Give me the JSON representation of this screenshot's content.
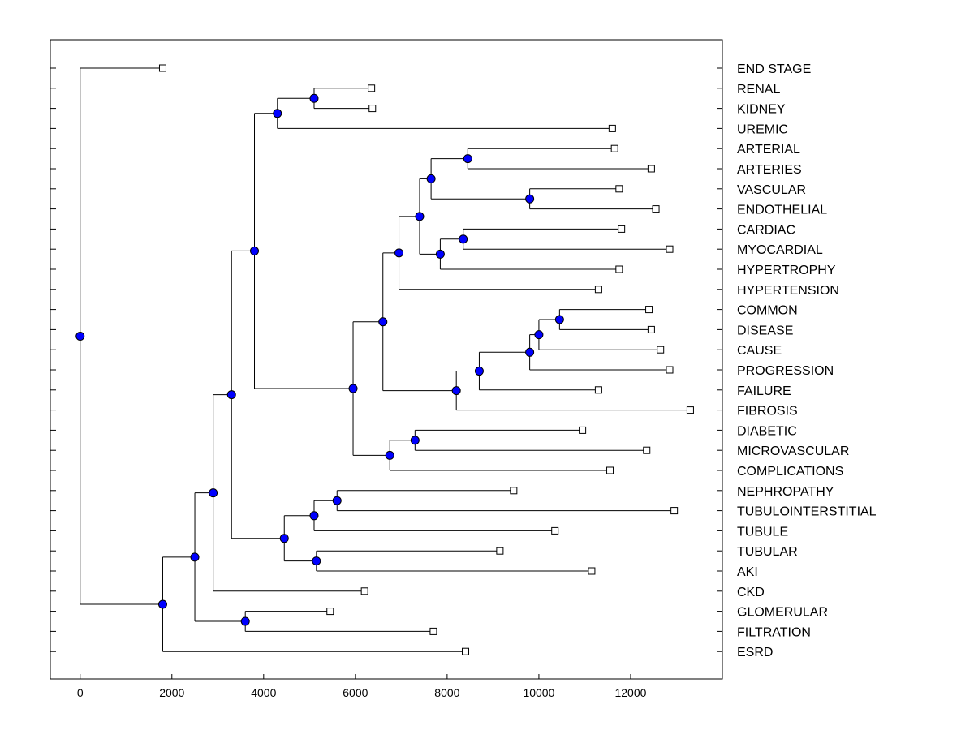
{
  "chart_data": {
    "type": "dendrogram",
    "title": "",
    "xlabel": "",
    "ylabel": "",
    "xlim": [
      -650,
      14000
    ],
    "x_ticks": [
      "0",
      "2000",
      "4000",
      "6000",
      "8000",
      "10000",
      "12000"
    ],
    "x_tick_values": [
      0,
      2000,
      4000,
      6000,
      8000,
      10000,
      12000
    ],
    "leaves": [
      {
        "label": "END STAGE",
        "x": 1800
      },
      {
        "label": "RENAL",
        "x": 6350
      },
      {
        "label": "KIDNEY",
        "x": 6370
      },
      {
        "label": "UREMIC",
        "x": 11600
      },
      {
        "label": "ARTERIAL",
        "x": 11650
      },
      {
        "label": "ARTERIES",
        "x": 12450
      },
      {
        "label": "VASCULAR",
        "x": 11750
      },
      {
        "label": "ENDOTHELIAL",
        "x": 12550
      },
      {
        "label": "CARDIAC",
        "x": 11800
      },
      {
        "label": "MYOCARDIAL",
        "x": 12850
      },
      {
        "label": "HYPERTROPHY",
        "x": 11750
      },
      {
        "label": "HYPERTENSION",
        "x": 11300
      },
      {
        "label": "COMMON",
        "x": 12400
      },
      {
        "label": "DISEASE",
        "x": 12450
      },
      {
        "label": "CAUSE",
        "x": 12650
      },
      {
        "label": "PROGRESSION",
        "x": 12850
      },
      {
        "label": "FAILURE",
        "x": 11300
      },
      {
        "label": "FIBROSIS",
        "x": 13300
      },
      {
        "label": "DIABETIC",
        "x": 10950
      },
      {
        "label": "MICROVASCULAR",
        "x": 12350
      },
      {
        "label": "COMPLICATIONS",
        "x": 11550
      },
      {
        "label": "NEPHROPATHY",
        "x": 9450
      },
      {
        "label": "TUBULOINTERSTITIAL",
        "x": 12950
      },
      {
        "label": "TUBULE",
        "x": 10350
      },
      {
        "label": "TUBULAR",
        "x": 9150
      },
      {
        "label": "AKI",
        "x": 11150
      },
      {
        "label": "CKD",
        "x": 6200
      },
      {
        "label": "GLOMERULAR",
        "x": 5450
      },
      {
        "label": "FILTRATION",
        "x": 7700
      },
      {
        "label": "ESRD",
        "x": 8400
      }
    ],
    "merges": [
      {
        "id": "N1",
        "x": 5100,
        "children": [
          "L1",
          "L2"
        ]
      },
      {
        "id": "N2",
        "x": 4300,
        "children": [
          "N1",
          "L3"
        ]
      },
      {
        "id": "N3",
        "x": 8450,
        "children": [
          "L4",
          "L5"
        ]
      },
      {
        "id": "N4",
        "x": 9800,
        "children": [
          "L6",
          "L7"
        ]
      },
      {
        "id": "N5",
        "x": 7650,
        "children": [
          "N3",
          "N4"
        ]
      },
      {
        "id": "N6",
        "x": 8350,
        "children": [
          "L8",
          "L9"
        ]
      },
      {
        "id": "N7",
        "x": 7850,
        "children": [
          "N6",
          "L10"
        ]
      },
      {
        "id": "N8",
        "x": 7400,
        "children": [
          "N5",
          "N7"
        ]
      },
      {
        "id": "N9",
        "x": 6950,
        "children": [
          "N8",
          "L11"
        ]
      },
      {
        "id": "N10",
        "x": 10450,
        "children": [
          "L12",
          "L13"
        ]
      },
      {
        "id": "N11",
        "x": 10000,
        "children": [
          "N10",
          "L14"
        ]
      },
      {
        "id": "N12",
        "x": 9800,
        "children": [
          "N11",
          "L15"
        ]
      },
      {
        "id": "N13",
        "x": 8700,
        "children": [
          "N12",
          "L16"
        ]
      },
      {
        "id": "N14",
        "x": 8200,
        "children": [
          "N13",
          "L17"
        ]
      },
      {
        "id": "N15",
        "x": 6600,
        "children": [
          "N9",
          "N14"
        ]
      },
      {
        "id": "N16",
        "x": 7300,
        "children": [
          "L18",
          "L19"
        ]
      },
      {
        "id": "N17",
        "x": 6750,
        "children": [
          "N16",
          "L20"
        ]
      },
      {
        "id": "N18",
        "x": 5950,
        "children": [
          "N15",
          "N17"
        ]
      },
      {
        "id": "N19",
        "x": 3800,
        "children": [
          "N2",
          "N18"
        ]
      },
      {
        "id": "N20",
        "x": 5600,
        "children": [
          "L21",
          "L22"
        ]
      },
      {
        "id": "N21",
        "x": 5100,
        "children": [
          "N20",
          "L23"
        ]
      },
      {
        "id": "N22",
        "x": 5150,
        "children": [
          "L24",
          "L25"
        ]
      },
      {
        "id": "N23",
        "x": 4450,
        "children": [
          "N21",
          "N22"
        ]
      },
      {
        "id": "N24",
        "x": 3300,
        "children": [
          "N19",
          "N23"
        ]
      },
      {
        "id": "N25",
        "x": 2900,
        "children": [
          "N24",
          "L26"
        ]
      },
      {
        "id": "N26",
        "x": 3600,
        "children": [
          "L27",
          "L28"
        ]
      },
      {
        "id": "N27",
        "x": 2500,
        "children": [
          "N25",
          "N26"
        ]
      },
      {
        "id": "N28",
        "x": 1800,
        "children": [
          "N27",
          "L29"
        ]
      },
      {
        "id": "N29",
        "x": 0,
        "children": [
          "L0",
          "N28"
        ]
      }
    ],
    "node_color": "#0000ff",
    "leaf_marker_color": "#ffffff",
    "line_color": "#000000"
  }
}
